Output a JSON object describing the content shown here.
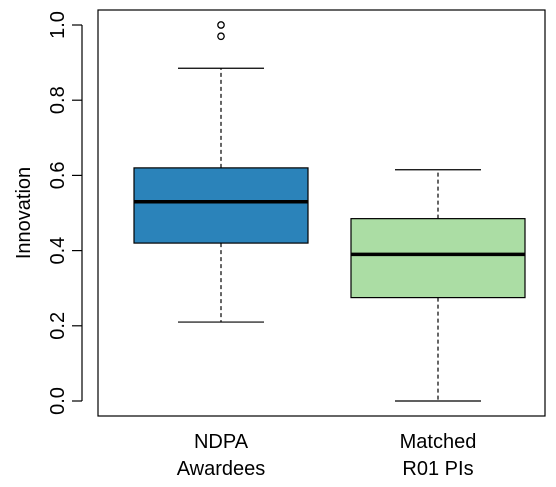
{
  "chart_data": {
    "type": "box",
    "title": "",
    "ylabel": "Innovation",
    "xlabel": "",
    "ylim": [
      0.0,
      1.0
    ],
    "yticks": [
      "0.0",
      "0.2",
      "0.4",
      "0.6",
      "0.8",
      "1.0"
    ],
    "grid": false,
    "legend": "none",
    "categories": [
      {
        "label_lines": [
          "NDPA",
          "Awardees"
        ],
        "color": "#2b83ba",
        "whisker_low": 0.21,
        "q1": 0.42,
        "median": 0.53,
        "q3": 0.62,
        "whisker_high": 0.885,
        "outliers": [
          0.97,
          1.0
        ]
      },
      {
        "label_lines": [
          "Matched",
          "R01 PIs"
        ],
        "color": "#abdda4",
        "whisker_low": 0.0,
        "q1": 0.275,
        "median": 0.39,
        "q3": 0.485,
        "whisker_high": 0.615,
        "outliers": []
      }
    ]
  }
}
